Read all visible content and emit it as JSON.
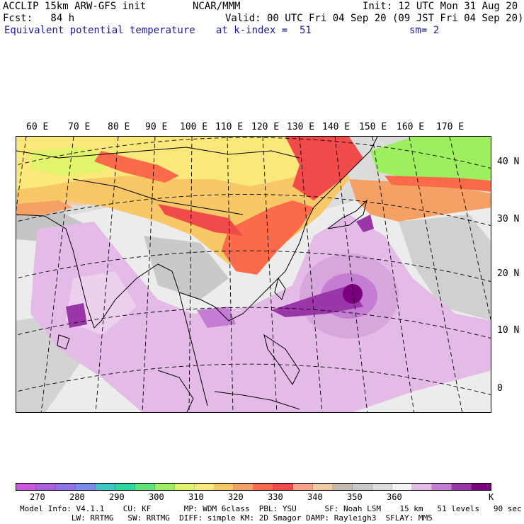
{
  "header": {
    "model": "ACCLIP 15km ARW-GFS init",
    "org": "NCAR/MMM",
    "init": "Init: 12 UTC Mon 31 Aug 20",
    "fcst": "Fcst:   84 h",
    "valid": "Valid: 00 UTC Fri 04 Sep 20 (09 JST Fri 04 Sep 20)",
    "field": "Equivalent potential temperature",
    "level": "at k-index =  51",
    "smooth": "sm= 2"
  },
  "map": {
    "lon_labels": [
      "60 E",
      "70 E",
      "80 E",
      "90 E",
      "100 E",
      "110 E",
      "120 E",
      "130 E",
      "140 E",
      "150 E",
      "160 E",
      "170 E"
    ],
    "lat_labels": [
      "40 N",
      "30 N",
      "20 N",
      "10 N",
      "0"
    ]
  },
  "colorbar": {
    "colors": [
      "#cc55dd",
      "#a95fe0",
      "#8f72e8",
      "#7a8cea",
      "#3ec6c6",
      "#2ed69f",
      "#5fe47a",
      "#9eef5f",
      "#e2f36c",
      "#fbe87a",
      "#f8c766",
      "#f5a165",
      "#fb6b4a",
      "#f04a4a",
      "#f7a189",
      "#f1c9a2",
      "#c4bbae",
      "#c9c9c9",
      "#dcdcdc",
      "#f3f3f3",
      "#e3bbe6",
      "#c47dd2",
      "#9a36a8",
      "#7a007f"
    ],
    "ticks": [
      "270",
      "280",
      "290",
      "300",
      "310",
      "320",
      "330",
      "340",
      "350",
      "360"
    ],
    "unit": "K"
  },
  "footer": {
    "line1": "Model Info: V4.1.1    CU: KF       MP: WDM 6class  PBL: YSU      SF: Noah LSM    15 km   51 levels   90 sec",
    "line2": "           LW: RRTMG   SW: RRTMG  DIFF: simple KM: 2D Smagor DAMP: Rayleigh3  SFLAY: MM5"
  }
}
